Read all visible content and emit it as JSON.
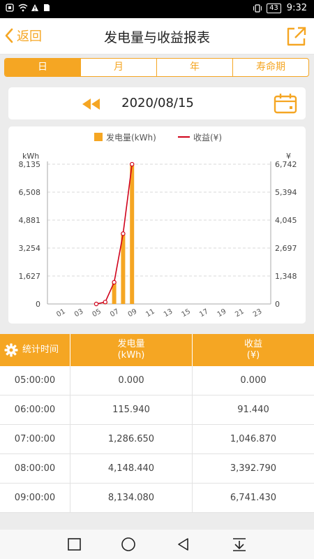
{
  "status": {
    "time": "9:32",
    "battery": "43"
  },
  "header": {
    "back_label": "返回",
    "title": "发电量与收益报表"
  },
  "tabs": [
    {
      "label": "日",
      "active": true
    },
    {
      "label": "月",
      "active": false
    },
    {
      "label": "年",
      "active": false
    },
    {
      "label": "寿命期",
      "active": false
    }
  ],
  "date": {
    "value": "2020/08/15"
  },
  "chart_data": {
    "type": "bar+line",
    "legend": [
      {
        "name": "发电量(kWh)",
        "color": "#f5a623",
        "kind": "bar"
      },
      {
        "name": "收益(¥)",
        "color": "#d0021b",
        "kind": "line"
      }
    ],
    "y_left_label": "kWh",
    "y_right_label": "¥",
    "y_left_ticks": [
      "0",
      "1,627",
      "3,254",
      "4,881",
      "6,508",
      "8,135"
    ],
    "y_right_ticks": [
      "0",
      "1,348",
      "2,697",
      "4,045",
      "5,394",
      "6,742"
    ],
    "ylim_left": [
      0,
      8135
    ],
    "ylim_right": [
      0,
      6742
    ],
    "x_ticks": [
      "01",
      "03",
      "05",
      "07",
      "09",
      "11",
      "13",
      "15",
      "17",
      "19",
      "21",
      "23"
    ],
    "hours": [
      0,
      1,
      2,
      3,
      4,
      5,
      6,
      7,
      8,
      9,
      10,
      11,
      12,
      13,
      14,
      15,
      16,
      17,
      18,
      19,
      20,
      21,
      22,
      23
    ],
    "energy": [
      0,
      0,
      0,
      0,
      0,
      0.0,
      115.94,
      1286.65,
      4148.44,
      8134.08,
      0,
      0,
      0,
      0,
      0,
      0,
      0,
      0,
      0,
      0,
      0,
      0,
      0,
      0
    ],
    "revenue_points": [
      {
        "hour": 5,
        "value": 0.0
      },
      {
        "hour": 6,
        "value": 91.44
      },
      {
        "hour": 7,
        "value": 1046.87
      },
      {
        "hour": 8,
        "value": 3392.79
      },
      {
        "hour": 9,
        "value": 6741.43
      }
    ]
  },
  "table": {
    "headers": {
      "time": "统计时间",
      "energy": "发电量\n(kWh)",
      "revenue": "收益\n(¥)"
    },
    "rows": [
      {
        "time": "05:00:00",
        "energy": "0.000",
        "revenue": "0.000"
      },
      {
        "time": "06:00:00",
        "energy": "115.940",
        "revenue": "91.440"
      },
      {
        "time": "07:00:00",
        "energy": "1,286.650",
        "revenue": "1,046.870"
      },
      {
        "time": "08:00:00",
        "energy": "4,148.440",
        "revenue": "3,392.790"
      },
      {
        "time": "09:00:00",
        "energy": "8,134.080",
        "revenue": "6,741.430"
      }
    ]
  },
  "colors": {
    "accent": "#f5a623",
    "revenue_line": "#d0021b"
  }
}
